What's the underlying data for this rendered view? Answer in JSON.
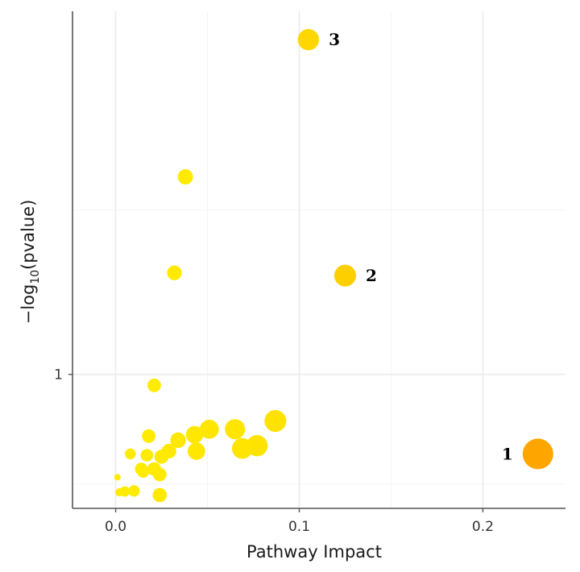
{
  "chart_data": {
    "type": "scatter",
    "title": "",
    "xlabel": "Pathway Impact",
    "ylabel": {
      "prefix": "−log",
      "subscript": "10",
      "suffix": "(pvalue)"
    },
    "xlim": [
      -0.0235,
      0.245
    ],
    "ylim": [
      0.575,
      2.26
    ],
    "x_ticks": [
      {
        "value": 0.0,
        "label": "0.0"
      },
      {
        "value": 0.1,
        "label": "0.1"
      },
      {
        "value": 0.2,
        "label": "0.2"
      }
    ],
    "y_ticks": [
      {
        "value": 1,
        "label": "1"
      }
    ],
    "y_minor_grid": [
      0.6,
      1.6
    ],
    "grid": true,
    "colors": {
      "low": "#ffeb00",
      "mid": "#fed700",
      "high": "#ffa500",
      "axis": "#555555",
      "grid": "#ebebeb",
      "grid_minor": "#f4f4f4"
    },
    "points": [
      {
        "x": 0.23,
        "y": 0.71,
        "size": 1.0,
        "color": "#ffa500",
        "label": "1"
      },
      {
        "x": 0.125,
        "y": 1.36,
        "size": 0.68,
        "color": "#fecf00",
        "label": "2"
      },
      {
        "x": 0.105,
        "y": 2.22,
        "size": 0.66,
        "color": "#fed700",
        "label": "3"
      },
      {
        "x": 0.038,
        "y": 1.72,
        "size": 0.44,
        "color": "#ffea00"
      },
      {
        "x": 0.032,
        "y": 1.37,
        "size": 0.42,
        "color": "#ffea00"
      },
      {
        "x": 0.021,
        "y": 0.96,
        "size": 0.38,
        "color": "#ffeb00"
      },
      {
        "x": 0.087,
        "y": 0.83,
        "size": 0.68,
        "color": "#ffe200"
      },
      {
        "x": 0.065,
        "y": 0.8,
        "size": 0.62,
        "color": "#ffe500"
      },
      {
        "x": 0.051,
        "y": 0.8,
        "size": 0.58,
        "color": "#ffe600"
      },
      {
        "x": 0.043,
        "y": 0.78,
        "size": 0.52,
        "color": "#ffe700"
      },
      {
        "x": 0.034,
        "y": 0.76,
        "size": 0.45,
        "color": "#ffe800"
      },
      {
        "x": 0.018,
        "y": 0.775,
        "size": 0.38,
        "color": "#ffeb00"
      },
      {
        "x": 0.077,
        "y": 0.74,
        "size": 0.66,
        "color": "#ffe300"
      },
      {
        "x": 0.069,
        "y": 0.73,
        "size": 0.64,
        "color": "#ffe400"
      },
      {
        "x": 0.044,
        "y": 0.72,
        "size": 0.52,
        "color": "#ffe700"
      },
      {
        "x": 0.029,
        "y": 0.72,
        "size": 0.42,
        "color": "#ffe900"
      },
      {
        "x": 0.008,
        "y": 0.71,
        "size": 0.28,
        "color": "#ffeb00"
      },
      {
        "x": 0.017,
        "y": 0.705,
        "size": 0.34,
        "color": "#ffeb00"
      },
      {
        "x": 0.025,
        "y": 0.7,
        "size": 0.4,
        "color": "#ffea00"
      },
      {
        "x": 0.014,
        "y": 0.655,
        "size": 0.35,
        "color": "#ffeb00"
      },
      {
        "x": 0.021,
        "y": 0.655,
        "size": 0.38,
        "color": "#ffeb00"
      },
      {
        "x": 0.015,
        "y": 0.645,
        "size": 0.32,
        "color": "#ffeb00"
      },
      {
        "x": 0.024,
        "y": 0.635,
        "size": 0.38,
        "color": "#ffea00"
      },
      {
        "x": 0.001,
        "y": 0.625,
        "size": 0.12,
        "color": "#ffeb00"
      },
      {
        "x": 0.01,
        "y": 0.575,
        "size": 0.3,
        "color": "#ffeb00"
      },
      {
        "x": 0.005,
        "y": 0.573,
        "size": 0.26,
        "color": "#ffeb00"
      },
      {
        "x": 0.002,
        "y": 0.57,
        "size": 0.18,
        "color": "#ffeb00"
      },
      {
        "x": 0.024,
        "y": 0.56,
        "size": 0.4,
        "color": "#ffea00"
      }
    ]
  }
}
